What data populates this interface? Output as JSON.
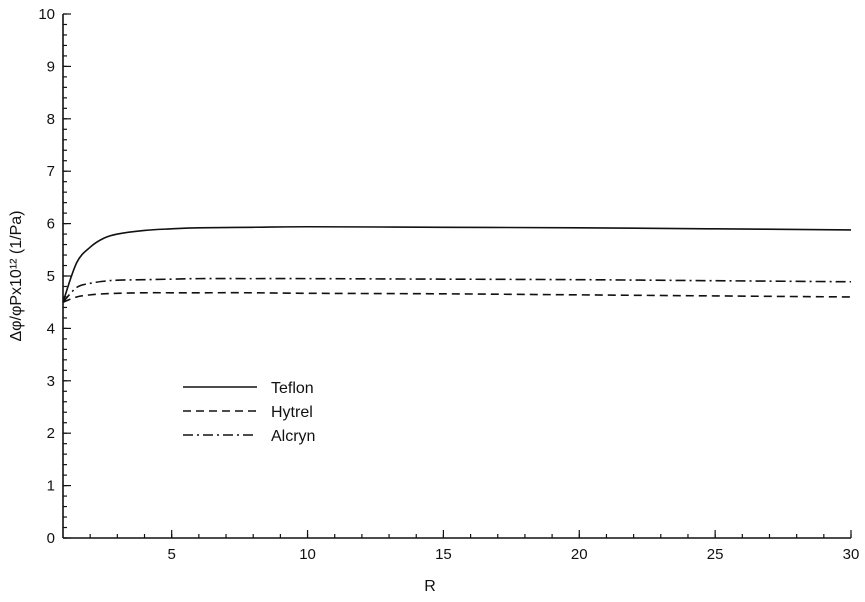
{
  "chart_data": {
    "type": "line",
    "title": "",
    "xlabel": "R",
    "ylabel": "Δφ/φPx10¹² (1/Pa)",
    "xlim": [
      1,
      30
    ],
    "ylim": [
      0,
      10
    ],
    "xticks": [
      5,
      10,
      15,
      20,
      25,
      30
    ],
    "xtick_labels": [
      "5",
      "10",
      "15",
      "20",
      "25",
      "30"
    ],
    "yticks": [
      0,
      1,
      2,
      3,
      4,
      5,
      6,
      7,
      8,
      9,
      10
    ],
    "ytick_labels": [
      "0",
      "1",
      "2",
      "3",
      "4",
      "5",
      "6",
      "7",
      "8",
      "9",
      "10"
    ],
    "grid": false,
    "legend_position": "lower-left",
    "x": [
      1,
      1.5,
      2,
      2.5,
      3,
      4,
      5,
      6,
      8,
      10,
      15,
      20,
      25,
      30
    ],
    "series": [
      {
        "name": "Teflon",
        "style": "solid",
        "values": [
          4.5,
          5.25,
          5.55,
          5.72,
          5.8,
          5.87,
          5.9,
          5.92,
          5.93,
          5.94,
          5.93,
          5.92,
          5.9,
          5.88
        ]
      },
      {
        "name": "Hytrel",
        "style": "dashed",
        "values": [
          4.5,
          4.6,
          4.64,
          4.66,
          4.67,
          4.68,
          4.68,
          4.68,
          4.68,
          4.67,
          4.66,
          4.64,
          4.62,
          4.6
        ]
      },
      {
        "name": "Alcryn",
        "style": "dashdot",
        "values": [
          4.5,
          4.78,
          4.86,
          4.9,
          4.92,
          4.93,
          4.94,
          4.95,
          4.95,
          4.95,
          4.94,
          4.93,
          4.91,
          4.89
        ]
      }
    ]
  }
}
